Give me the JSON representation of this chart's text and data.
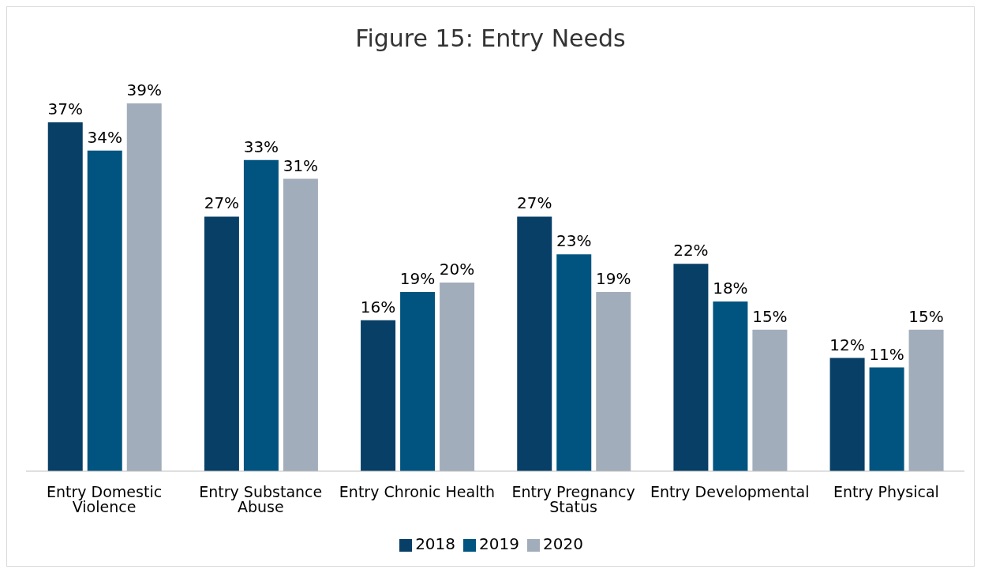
{
  "chart_data": {
    "type": "bar",
    "title": "Figure 15: Entry Needs",
    "categories": [
      "Entry Domestic Violence",
      "Entry Substance Abuse",
      "Entry Chronic Health",
      "Entry Pregnancy Status",
      "Entry Developmental",
      "Entry Physical"
    ],
    "series": [
      {
        "name": "2018",
        "color": "#073f66",
        "values": [
          37,
          27,
          16,
          27,
          22,
          12
        ],
        "value_labels": [
          "37%",
          "27%",
          "16%",
          "27%",
          "22%",
          "12%"
        ]
      },
      {
        "name": "2019",
        "color": "#00547f",
        "values": [
          34,
          33,
          19,
          23,
          18,
          11
        ],
        "value_labels": [
          "34%",
          "33%",
          "19%",
          "23%",
          "18%",
          "11%"
        ]
      },
      {
        "name": "2020",
        "color": "#a2adbb",
        "values": [
          39,
          31,
          20,
          19,
          15,
          15
        ],
        "value_labels": [
          "39%",
          "31%",
          "20%",
          "19%",
          "15%",
          "15%"
        ]
      }
    ],
    "grid": false,
    "legend": "bottom"
  }
}
